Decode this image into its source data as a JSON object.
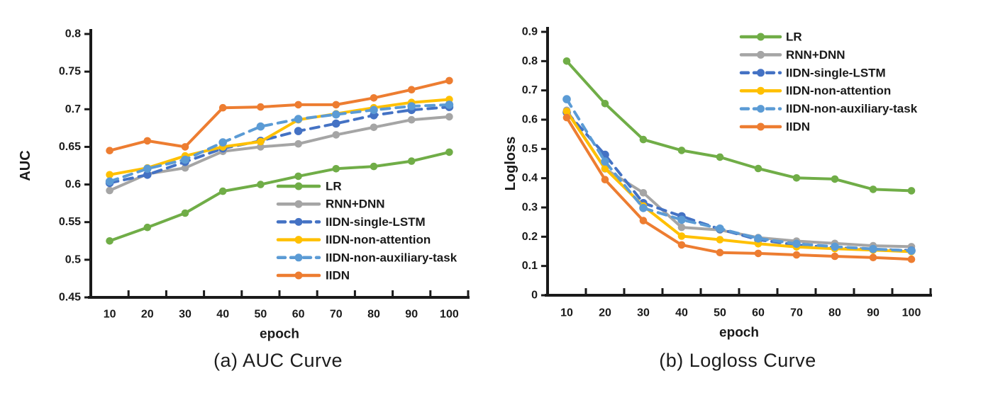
{
  "chart_data": [
    {
      "id": "auc",
      "type": "line",
      "caption": "(a) AUC Curve",
      "xlabel": "epoch",
      "ylabel": "AUC",
      "x": [
        10,
        20,
        30,
        40,
        50,
        60,
        70,
        80,
        90,
        100
      ],
      "xticklabels": [
        "10",
        "20",
        "30",
        "40",
        "50",
        "60",
        "70",
        "80",
        "90",
        "100"
      ],
      "ylim": [
        0.45,
        0.8
      ],
      "ytick_step": 0.05,
      "yticklabels": [
        "0.45",
        "0.5",
        "0.55",
        "0.6",
        "0.65",
        "0.7",
        "0.75",
        "0.8"
      ],
      "grid": false,
      "legend_position": "inside-bottom-right",
      "series": [
        {
          "name": "LR",
          "color": "#70AD47",
          "dash": false,
          "values": [
            0.525,
            0.543,
            0.562,
            0.591,
            0.6,
            0.611,
            0.621,
            0.624,
            0.631,
            0.643
          ]
        },
        {
          "name": "RNN+DNN",
          "color": "#A5A5A5",
          "dash": false,
          "values": [
            0.592,
            0.614,
            0.622,
            0.644,
            0.65,
            0.654,
            0.666,
            0.676,
            0.686,
            0.69
          ]
        },
        {
          "name": "IIDN-single-LSTM",
          "color": "#4472C4",
          "dash": true,
          "values": [
            0.602,
            0.613,
            0.63,
            0.648,
            0.658,
            0.671,
            0.681,
            0.692,
            0.699,
            0.703
          ]
        },
        {
          "name": "IIDN-non-attention",
          "color": "#FFC000",
          "dash": false,
          "values": [
            0.613,
            0.622,
            0.638,
            0.65,
            0.657,
            0.686,
            0.694,
            0.702,
            0.709,
            0.713
          ]
        },
        {
          "name": "IIDN-non-auxiliary-task",
          "color": "#5B9BD5",
          "dash": true,
          "values": [
            0.604,
            0.621,
            0.633,
            0.656,
            0.677,
            0.687,
            0.693,
            0.699,
            0.704,
            0.706
          ]
        },
        {
          "name": "IIDN",
          "color": "#ED7D31",
          "dash": false,
          "values": [
            0.645,
            0.658,
            0.65,
            0.702,
            0.703,
            0.706,
            0.706,
            0.715,
            0.726,
            0.738
          ]
        }
      ]
    },
    {
      "id": "logloss",
      "type": "line",
      "caption": "(b) Logloss Curve",
      "xlabel": "epoch",
      "ylabel": "Logloss",
      "x": [
        10,
        20,
        30,
        40,
        50,
        60,
        70,
        80,
        90,
        100
      ],
      "xticklabels": [
        "10",
        "20",
        "30",
        "40",
        "50",
        "60",
        "70",
        "80",
        "90",
        "100"
      ],
      "ylim": [
        0,
        0.9
      ],
      "ytick_step": 0.1,
      "yticklabels": [
        "0",
        "0.1",
        "0.2",
        "0.3",
        "0.4",
        "0.5",
        "0.6",
        "0.7",
        "0.8",
        "0.9"
      ],
      "grid": false,
      "legend_position": "inside-top-right",
      "series": [
        {
          "name": "LR",
          "color": "#70AD47",
          "dash": false,
          "values": [
            0.8,
            0.655,
            0.532,
            0.495,
            0.472,
            0.433,
            0.401,
            0.397,
            0.362,
            0.357
          ]
        },
        {
          "name": "RNN+DNN",
          "color": "#A5A5A5",
          "dash": false,
          "values": [
            0.632,
            0.432,
            0.35,
            0.232,
            0.223,
            0.197,
            0.185,
            0.177,
            0.169,
            0.166
          ]
        },
        {
          "name": "IIDN-single-LSTM",
          "color": "#4472C4",
          "dash": true,
          "values": [
            0.625,
            0.48,
            0.315,
            0.27,
            0.226,
            0.19,
            0.172,
            0.163,
            0.157,
            0.153
          ]
        },
        {
          "name": "IIDN-non-attention",
          "color": "#FFC000",
          "dash": false,
          "values": [
            0.628,
            0.433,
            0.305,
            0.202,
            0.19,
            0.176,
            0.165,
            0.159,
            0.154,
            0.149
          ]
        },
        {
          "name": "IIDN-non-auxiliary-task",
          "color": "#5B9BD5",
          "dash": true,
          "values": [
            0.67,
            0.457,
            0.298,
            0.258,
            0.228,
            0.194,
            0.176,
            0.166,
            0.158,
            0.152
          ]
        },
        {
          "name": "IIDN",
          "color": "#ED7D31",
          "dash": false,
          "values": [
            0.607,
            0.395,
            0.255,
            0.172,
            0.146,
            0.143,
            0.138,
            0.133,
            0.129,
            0.123
          ]
        }
      ]
    }
  ],
  "style": {
    "text_color": "#1a1a1a",
    "axis_color": "#1a1a1a",
    "background": "#ffffff"
  }
}
